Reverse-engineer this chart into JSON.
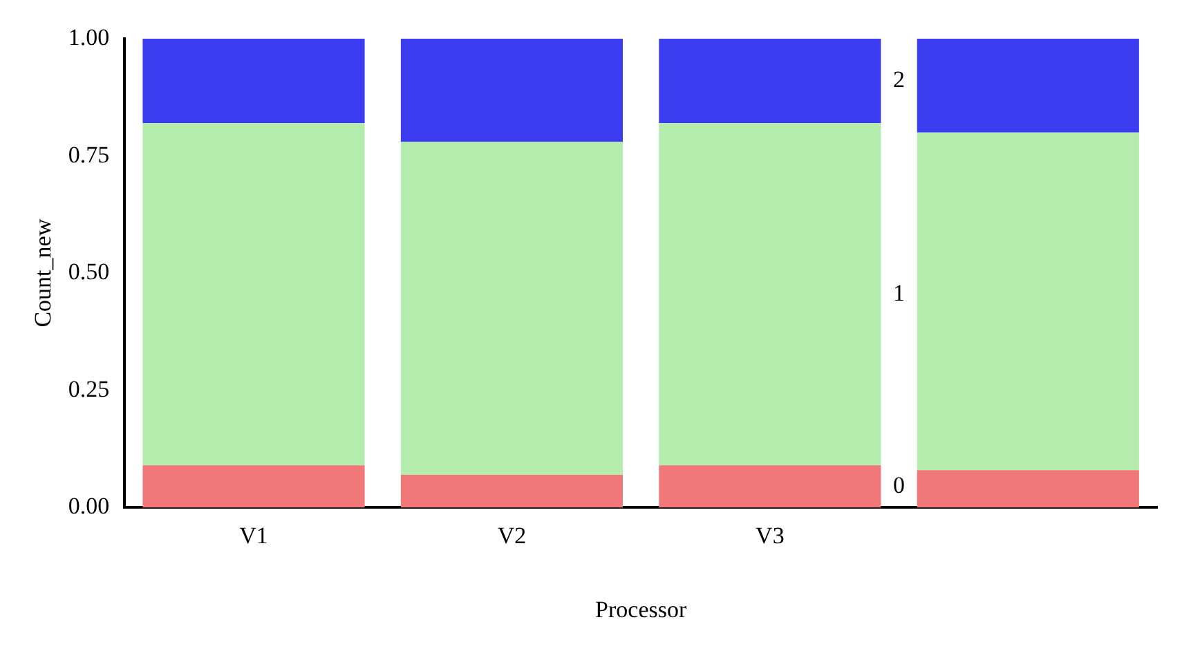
{
  "chart_data": {
    "type": "bar",
    "stacked": true,
    "xlabel": "Processor",
    "ylabel": "Count_new",
    "categories": [
      "V1",
      "V2",
      "V3",
      null
    ],
    "series": [
      {
        "name": "0",
        "color": "#f07878",
        "values": [
          0.09,
          0.07,
          0.09,
          0.08
        ]
      },
      {
        "name": "1",
        "color": "#b4ecae",
        "values": [
          0.73,
          0.71,
          0.73,
          0.72
        ]
      },
      {
        "name": "2",
        "color": "#3c3cf0",
        "values": [
          0.18,
          0.22,
          0.18,
          0.2
        ]
      }
    ],
    "ylim": [
      0,
      1
    ],
    "yticks": [
      {
        "value": 0,
        "label": "0.00"
      },
      {
        "value": 0.25,
        "label": "0.25"
      },
      {
        "value": 0.5,
        "label": "0.50"
      },
      {
        "value": 0.75,
        "label": "0.75"
      },
      {
        "value": 1,
        "label": "1.00"
      }
    ],
    "grid": false,
    "legend": false
  }
}
